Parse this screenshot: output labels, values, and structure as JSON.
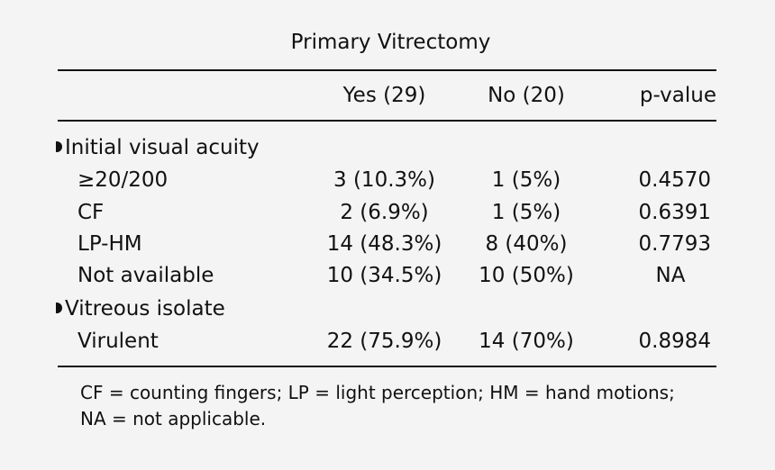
{
  "table": {
    "title": "Primary Vitrectomy",
    "headers": {
      "yes": "Yes (29)",
      "no": "No (20)",
      "pvalue": "p-value"
    },
    "sections": [
      {
        "label": "Initial visual acuity",
        "rows": [
          {
            "label": "≥20/200",
            "yes": "3 (10.3%)",
            "no": "1 (5%)",
            "p": "0.4570"
          },
          {
            "label": "CF",
            "yes": "2 (6.9%)",
            "no": "1 (5%)",
            "p": "0.6391"
          },
          {
            "label": "LP-HM",
            "yes": "14 (48.3%)",
            "no": "8 (40%)",
            "p": "0.7793"
          },
          {
            "label": "Not available",
            "yes": "10 (34.5%)",
            "no": "10 (50%)",
            "p": "NA"
          }
        ]
      },
      {
        "label": "Vitreous isolate",
        "rows": [
          {
            "label": "Virulent",
            "yes": "22 (75.9%)",
            "no": "14 (70%)",
            "p": "0.8984"
          }
        ]
      }
    ],
    "footnote": {
      "line1": "CF = counting fingers; LP = light perception; HM = hand motions;",
      "line2": "NA = not applicable."
    }
  }
}
